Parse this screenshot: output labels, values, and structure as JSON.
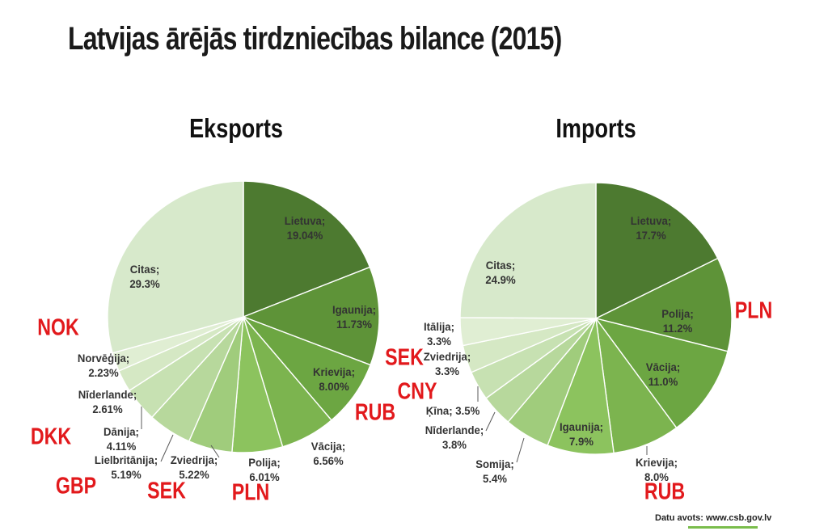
{
  "title": "Latvijas ārējās tirdzniecības bilance (2015)",
  "footer": {
    "source_label": "Datu avots: www.csb.gov.lv"
  },
  "colors": {
    "background": "#ffffff",
    "currency_red": "#E2191C",
    "label_text": "#333333",
    "title_text": "#1a1a1a",
    "leader_line": "#595959",
    "slice_border": "#ffffff",
    "footer_underline": "#7ABD4C",
    "palette": [
      "#4D7A30",
      "#5E9338",
      "#6CA642",
      "#7CB44F",
      "#8CC35E",
      "#A0CC7C",
      "#B7D89C",
      "#C7E1B2",
      "#D5E8C4",
      "#E0EED3",
      "#D7E9CB"
    ]
  },
  "chart_data": [
    {
      "type": "pie",
      "title": "Eksports",
      "unit": "%",
      "start_angle_deg": 0,
      "direction": "clockwise",
      "legend": "none",
      "slices": [
        {
          "name": "Lietuva",
          "value": 19.04,
          "display": "19.04%",
          "currency": null,
          "label_placement": "inside"
        },
        {
          "name": "Igaunija",
          "value": 11.73,
          "display": "11.73%",
          "currency": null,
          "label_placement": "inside"
        },
        {
          "name": "Krievija",
          "value": 8.0,
          "display": "8.00%",
          "currency": "RUB",
          "label_placement": "inside"
        },
        {
          "name": "Vācija",
          "value": 6.56,
          "display": "6.56%",
          "currency": null,
          "label_placement": "outside"
        },
        {
          "name": "Polija",
          "value": 6.01,
          "display": "6.01%",
          "currency": "PLN",
          "label_placement": "outside"
        },
        {
          "name": "Zviedrija",
          "value": 5.22,
          "display": "5.22%",
          "currency": "SEK",
          "label_placement": "outside"
        },
        {
          "name": "Lielbritānija",
          "value": 5.19,
          "display": "5.19%",
          "currency": "GBP",
          "label_placement": "outside"
        },
        {
          "name": "Dānija",
          "value": 4.11,
          "display": "4.11%",
          "currency": "DKK",
          "label_placement": "outside"
        },
        {
          "name": "Nīderlande",
          "value": 2.61,
          "display": "2.61%",
          "currency": null,
          "label_placement": "outside"
        },
        {
          "name": "Norvēģija",
          "value": 2.23,
          "display": "2.23%",
          "currency": "NOK",
          "label_placement": "outside"
        },
        {
          "name": "Citas",
          "value": 29.3,
          "display": "29.3%",
          "currency": null,
          "label_placement": "inside"
        }
      ]
    },
    {
      "type": "pie",
      "title": "Imports",
      "unit": "%",
      "start_angle_deg": 0,
      "direction": "clockwise",
      "legend": "none",
      "slices": [
        {
          "name": "Lietuva",
          "value": 17.7,
          "display": "17.7%",
          "currency": null,
          "label_placement": "inside"
        },
        {
          "name": "Polija",
          "value": 11.2,
          "display": "11.2%",
          "currency": "PLN",
          "label_placement": "inside"
        },
        {
          "name": "Vācija",
          "value": 11.0,
          "display": "11.0%",
          "currency": null,
          "label_placement": "inside"
        },
        {
          "name": "Krievija",
          "value": 8.0,
          "display": "8.0%",
          "currency": "RUB",
          "label_placement": "outside"
        },
        {
          "name": "Igaunija",
          "value": 7.9,
          "display": "7.9%",
          "currency": null,
          "label_placement": "inside"
        },
        {
          "name": "Somija",
          "value": 5.4,
          "display": "5.4%",
          "currency": null,
          "label_placement": "outside"
        },
        {
          "name": "Nīderlande",
          "value": 3.8,
          "display": "3.8%",
          "currency": null,
          "label_placement": "outside"
        },
        {
          "name": "Ķīna",
          "value": 3.5,
          "display": "3.5%",
          "currency": "CNY",
          "label_placement": "outside",
          "one_line": true
        },
        {
          "name": "Zviedrija",
          "value": 3.3,
          "display": "3.3%",
          "currency": "SEK",
          "label_placement": "outside"
        },
        {
          "name": "Itālija",
          "value": 3.3,
          "display": "3.3%",
          "currency": null,
          "label_placement": "outside"
        },
        {
          "name": "Citas",
          "value": 24.9,
          "display": "24.9%",
          "currency": null,
          "label_placement": "inside"
        }
      ]
    }
  ]
}
